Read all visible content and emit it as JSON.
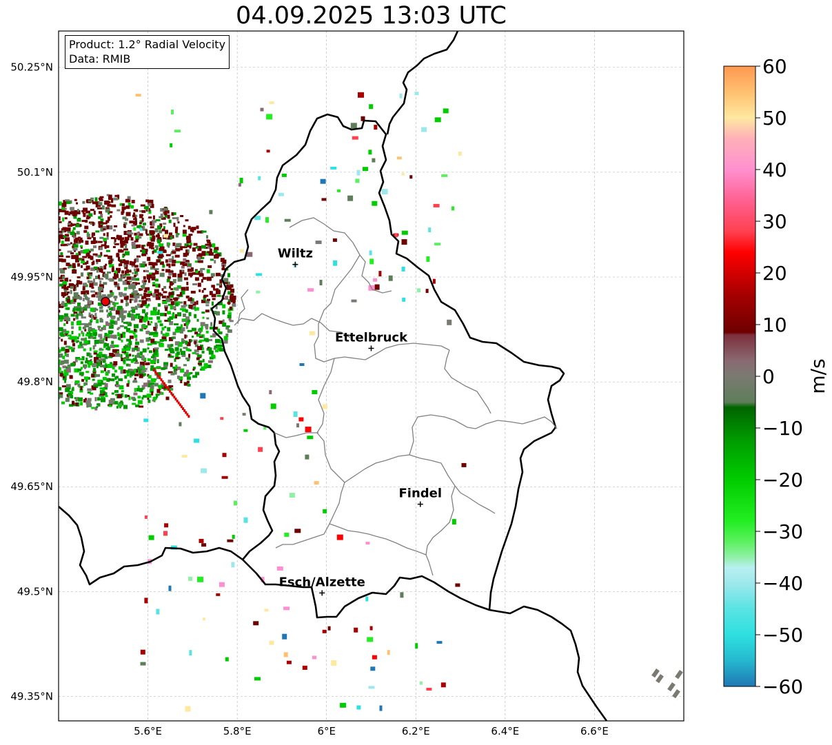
{
  "title": "04.09.2025 13:03 UTC",
  "info": {
    "product": "Product: 1.2° Radial Velocity",
    "data_source": "Data: RMIB"
  },
  "map": {
    "lon_range": [
      5.4,
      6.8
    ],
    "lat_range": [
      49.315,
      50.302
    ],
    "lat_ticks": [
      {
        "value": 50.25,
        "label": "50.25°N"
      },
      {
        "value": 50.1,
        "label": "50.1°N"
      },
      {
        "value": 49.95,
        "label": "49.95°N"
      },
      {
        "value": 49.8,
        "label": "49.8°N"
      },
      {
        "value": 49.65,
        "label": "49.65°N"
      },
      {
        "value": 49.5,
        "label": "49.5°N"
      },
      {
        "value": 49.35,
        "label": "49.35°N"
      }
    ],
    "lon_ticks": [
      {
        "value": 5.6,
        "label": "5.6°E"
      },
      {
        "value": 5.8,
        "label": "5.8°E"
      },
      {
        "value": 6.0,
        "label": "6°E"
      },
      {
        "value": 6.2,
        "label": "6.2°E"
      },
      {
        "value": 6.4,
        "label": "6.4°E"
      },
      {
        "value": 6.6,
        "label": "6.6°E"
      }
    ],
    "grid": true,
    "radar_site": {
      "lon": 5.505,
      "lat": 49.915,
      "color": "#e60000"
    },
    "cities": [
      {
        "name": "Wiltz",
        "lon": 5.93,
        "lat": 49.968
      },
      {
        "name": "Ettelbruck",
        "lon": 6.1,
        "lat": 49.848
      },
      {
        "name": "Findel",
        "lon": 6.21,
        "lat": 49.625
      },
      {
        "name": "Esch/Alzette",
        "lon": 5.99,
        "lat": 49.498
      }
    ],
    "border_color": "#000000",
    "canton_color": "#808080"
  },
  "colorbar": {
    "unit": "m/s",
    "range": [
      -60,
      60
    ],
    "ticks": [
      {
        "value": 60,
        "label": "60"
      },
      {
        "value": 50,
        "label": "50"
      },
      {
        "value": 40,
        "label": "40"
      },
      {
        "value": 30,
        "label": "30"
      },
      {
        "value": 20,
        "label": "20"
      },
      {
        "value": 10,
        "label": "10"
      },
      {
        "value": 0,
        "label": "0"
      },
      {
        "value": -10,
        "label": "−10"
      },
      {
        "value": -20,
        "label": "−20"
      },
      {
        "value": -30,
        "label": "−30"
      },
      {
        "value": -40,
        "label": "−40"
      },
      {
        "value": -50,
        "label": "−50"
      },
      {
        "value": -60,
        "label": "−60"
      }
    ],
    "color_stops": [
      {
        "value": -60,
        "color": "#1f78b4"
      },
      {
        "value": -55,
        "color": "#25b8cf"
      },
      {
        "value": -50,
        "color": "#2ee0e0"
      },
      {
        "value": -45,
        "color": "#5ae3e3"
      },
      {
        "value": -40,
        "color": "#9ee8ec"
      },
      {
        "value": -37,
        "color": "#b8f0f0"
      },
      {
        "value": -35,
        "color": "#90f0a8"
      },
      {
        "value": -32,
        "color": "#5cf060"
      },
      {
        "value": -28,
        "color": "#22ee22"
      },
      {
        "value": -20,
        "color": "#00cc00"
      },
      {
        "value": -12,
        "color": "#009900"
      },
      {
        "value": -6,
        "color": "#006400"
      },
      {
        "value": -5,
        "color": "#5e7e5a"
      },
      {
        "value": 0,
        "color": "#7a7a72"
      },
      {
        "value": 3,
        "color": "#8a6a72"
      },
      {
        "value": 8,
        "color": "#7d2f3c"
      },
      {
        "value": 8.5,
        "color": "#6e0000"
      },
      {
        "value": 16,
        "color": "#a80000"
      },
      {
        "value": 24,
        "color": "#ff0000"
      },
      {
        "value": 28,
        "color": "#ff4050"
      },
      {
        "value": 34,
        "color": "#ff6090"
      },
      {
        "value": 40,
        "color": "#ff90d0"
      },
      {
        "value": 46,
        "color": "#ffb0b8"
      },
      {
        "value": 50,
        "color": "#ffe8a0"
      },
      {
        "value": 55,
        "color": "#ffc070"
      },
      {
        "value": 60,
        "color": "#ff9850"
      }
    ]
  }
}
